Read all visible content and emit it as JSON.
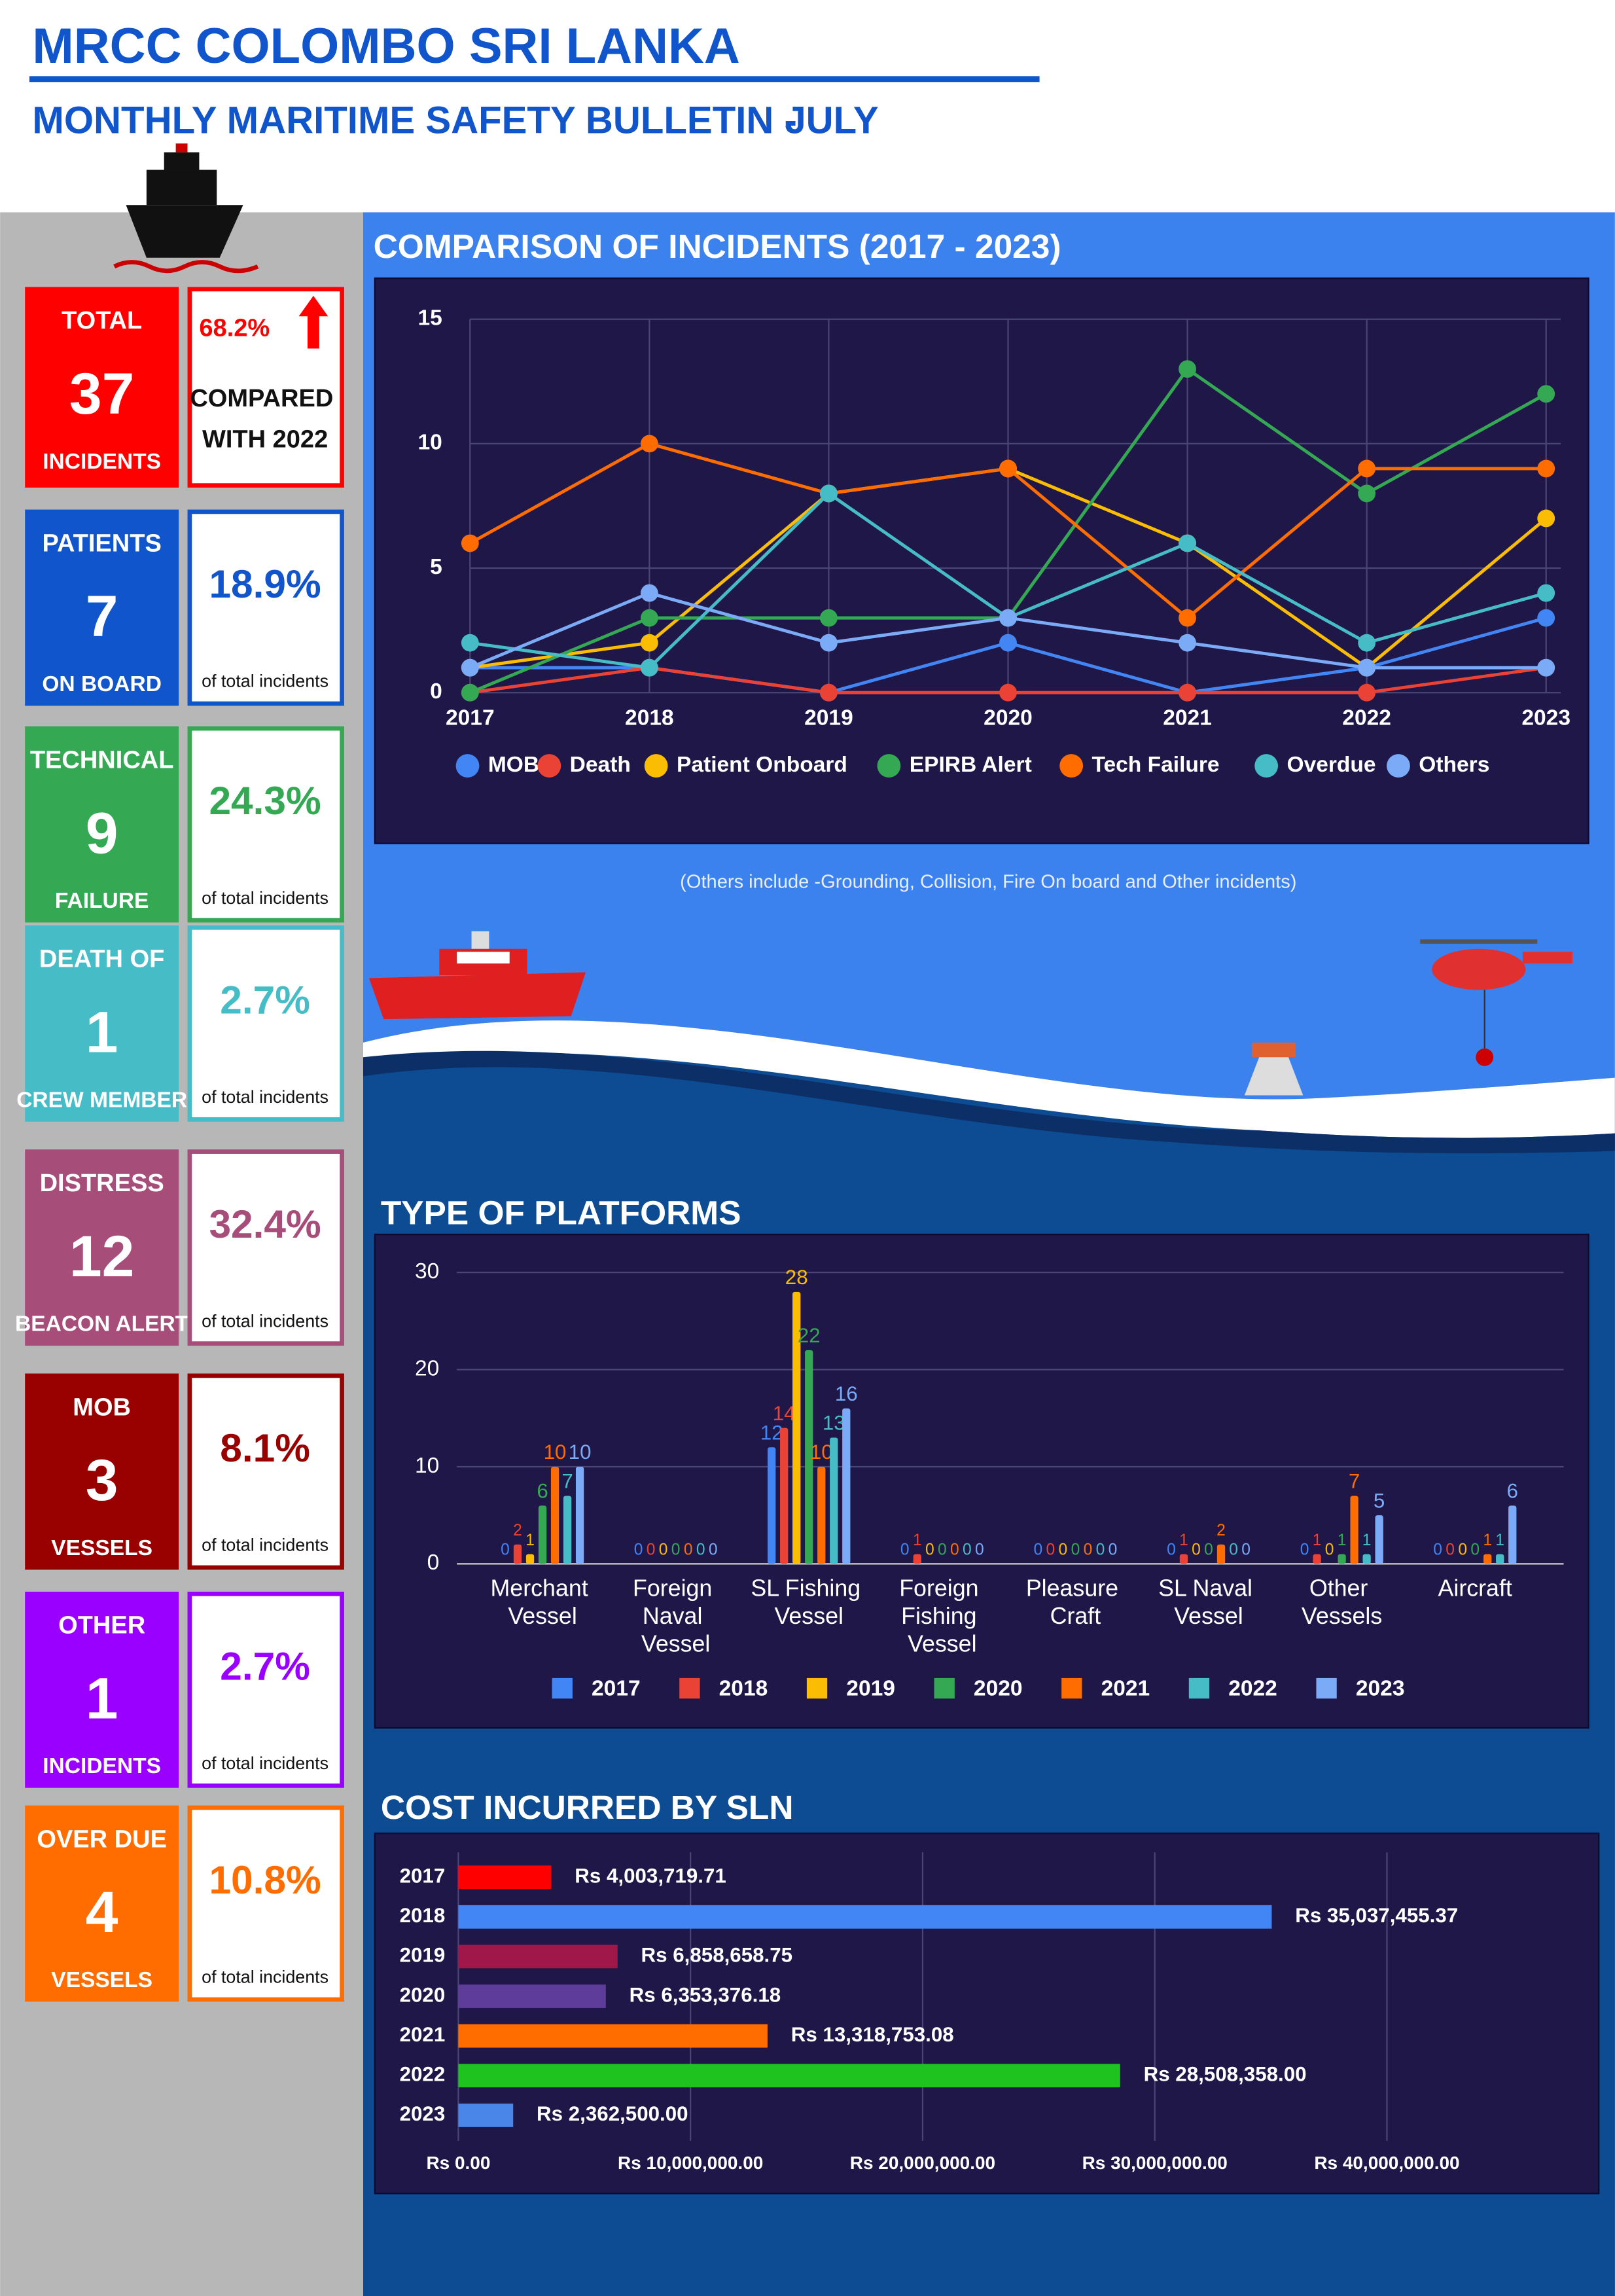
{
  "header": {
    "title": "MRCC COLOMBO SRI LANKA",
    "subtitle": "MONTHLY MARITIME SAFETY BULLETIN -",
    "month": "JULY"
  },
  "cards": [
    {
      "top": "TOTAL",
      "number": 37,
      "bottom": "INCIDENTS",
      "percent": "68.2%",
      "note": "COMPARED WITH 2022",
      "color": "#ff0000"
    },
    {
      "top": "PATIENTS",
      "number": 7,
      "bottom": "ON BOARD",
      "percent": "18.9%",
      "note": "of total incidents",
      "color": "#1155cc"
    },
    {
      "top": "TECHNICAL",
      "number": 9,
      "bottom": "FAILURE",
      "percent": "24.3%",
      "note": "of total incidents",
      "color": "#34a853"
    },
    {
      "top": "DEATH OF",
      "number": 1,
      "bottom": "CREW MEMBER",
      "percent": "2.7%",
      "note": "of total incidents",
      "color": "#46bdc6"
    },
    {
      "top": "DISTRESS",
      "number": 12,
      "bottom": "BEACON ALERT",
      "percent": "32.4%",
      "note": "of total incidents",
      "color": "#a64d79"
    },
    {
      "top": "MOB",
      "number": 3,
      "bottom": "VESSELS",
      "percent": "8.1%",
      "note": "of total incidents",
      "color": "#990000"
    },
    {
      "top": "OTHER",
      "number": 1,
      "bottom": "INCIDENTS",
      "percent": "2.7%",
      "note": "of total incidents",
      "color": "#9900ff"
    },
    {
      "top": "OVER DUE",
      "number": 4,
      "bottom": "VESSELS",
      "percent": "10.8%",
      "note": "of total incidents",
      "color": "#ff6d01"
    }
  ],
  "chart_data": [
    {
      "type": "line",
      "title": "COMPARISON OF INCIDENTS (2017 - 2023)",
      "categories": [
        "2017",
        "2018",
        "2019",
        "2020",
        "2021",
        "2022",
        "2023"
      ],
      "series": [
        {
          "name": "MOB",
          "color": "#4285f4",
          "values": [
            1,
            1,
            0,
            2,
            0,
            1,
            3
          ]
        },
        {
          "name": "Death",
          "color": "#ea4335",
          "values": [
            0,
            1,
            0,
            0,
            0,
            0,
            1
          ]
        },
        {
          "name": "Patient Onboard",
          "color": "#fbbc04",
          "values": [
            1,
            2,
            8,
            9,
            6,
            1,
            7
          ]
        },
        {
          "name": "EPIRB Alert",
          "color": "#34a853",
          "values": [
            0,
            3,
            3,
            3,
            13,
            8,
            12
          ]
        },
        {
          "name": "Tech Failure",
          "color": "#ff6d01",
          "values": [
            6,
            10,
            8,
            9,
            3,
            9,
            9
          ]
        },
        {
          "name": "Overdue",
          "color": "#46bdc6",
          "values": [
            2,
            1,
            8,
            3,
            6,
            2,
            4
          ]
        },
        {
          "name": "Others",
          "color": "#7baaf7",
          "values": [
            1,
            4,
            2,
            3,
            2,
            1,
            1
          ]
        }
      ],
      "ylim": [
        0,
        15
      ],
      "yticks": [
        0,
        5,
        10,
        15
      ],
      "grid": true,
      "note": "(Others include -Grounding, Collision, Fire On board and Other incidents)"
    },
    {
      "type": "bar",
      "title": "TYPE OF PLATFORMS",
      "categories": [
        "Merchant Vessel",
        "Foreign Naval Vessel",
        "SL Fishing Vessel",
        "Foreign Fishing Vessel",
        "Pleasure Craft",
        "SL Naval Vessel",
        "Other Vessels",
        "Aircraft"
      ],
      "series": [
        {
          "name": "2017",
          "color": "#4285f4",
          "values": [
            0,
            0,
            12,
            0,
            0,
            0,
            0,
            0
          ]
        },
        {
          "name": "2018",
          "color": "#ea4335",
          "values": [
            2,
            0,
            14,
            1,
            0,
            1,
            1,
            0
          ]
        },
        {
          "name": "2019",
          "color": "#fbbc04",
          "values": [
            1,
            0,
            28,
            0,
            0,
            0,
            0,
            0
          ]
        },
        {
          "name": "2020",
          "color": "#34a853",
          "values": [
            6,
            0,
            22,
            0,
            0,
            0,
            1,
            0
          ]
        },
        {
          "name": "2021",
          "color": "#ff6d01",
          "values": [
            10,
            0,
            10,
            0,
            0,
            2,
            7,
            1
          ]
        },
        {
          "name": "2022",
          "color": "#46bdc6",
          "values": [
            7,
            0,
            13,
            0,
            0,
            0,
            1,
            1
          ]
        },
        {
          "name": "2023",
          "color": "#7baaf7",
          "values": [
            10,
            0,
            16,
            0,
            0,
            0,
            5,
            6
          ]
        }
      ],
      "ylim": [
        0,
        30
      ],
      "yticks": [
        0,
        10,
        20,
        30
      ],
      "grid": true
    },
    {
      "type": "hbar",
      "title": "COST INCURRED BY SLN",
      "categories": [
        "2017",
        "2018",
        "2019",
        "2020",
        "2021",
        "2022",
        "2023"
      ],
      "values": [
        4003719.71,
        35037455.37,
        6858658.75,
        6353376.18,
        13318753.08,
        28508358.0,
        2362500.0
      ],
      "value_labels": [
        "Rs 4,003,719.71",
        "Rs 35,037,455.37",
        "Rs 6,858,658.75",
        "Rs 6,353,376.18",
        "Rs 13,318,753.08",
        "Rs 28,508,358.00",
        "Rs 2,362,500.00"
      ],
      "colors": [
        "#ff0000",
        "#4285f4",
        "#a0184a",
        "#5e3c99",
        "#ff6d01",
        "#1fc31f",
        "#4a86e8"
      ],
      "xlim": [
        0,
        49000000
      ],
      "xticks": [
        {
          "value": 0,
          "label": "Rs 0.00"
        },
        {
          "value": 10000000,
          "label": "Rs 10,000,000.00"
        },
        {
          "value": 20000000,
          "label": "Rs 20,000,000.00"
        },
        {
          "value": 30000000,
          "label": "Rs 30,000,000.00"
        },
        {
          "value": 40000000,
          "label": "Rs 40,000,000.00"
        }
      ],
      "grid": true
    }
  ]
}
